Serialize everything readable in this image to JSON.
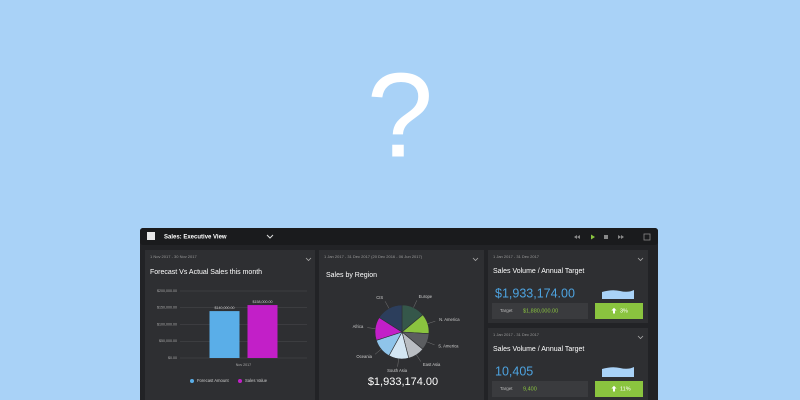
{
  "hero": {
    "symbol": "?"
  },
  "header": {
    "title": "Sales:  Executive View"
  },
  "chart_data": [
    {
      "type": "bar",
      "subtitle": "1 Nov 2017 - 30 Nov 2017",
      "title": "Forecast Vs Actual Sales this month",
      "categories": [
        "Nov 2017"
      ],
      "series": [
        {
          "name": "Forecast Amount",
          "color": "#5aaee8",
          "values": [
            140000
          ],
          "value_labels": [
            "$140,000.00"
          ]
        },
        {
          "name": "Sales Value",
          "color": "#c21fc8",
          "values": [
            158000
          ],
          "value_labels": [
            "$158,000.00"
          ]
        }
      ],
      "ylim": [
        0,
        200000
      ],
      "yticks": [
        {
          "value": 0,
          "label": "$0.00"
        },
        {
          "value": 50000,
          "label": "$50,000.00"
        },
        {
          "value": 100000,
          "label": "$100,000.00"
        },
        {
          "value": 150000,
          "label": "$150,000.00"
        },
        {
          "value": 200000,
          "label": "$200,000.00"
        }
      ],
      "grid": true
    },
    {
      "type": "pie",
      "subtitle": "1 Jan 2017 - 31 Dec 2017  (20 Dec 2016 - 06 Jun 2017)",
      "title": "Sales by Region",
      "categories": [
        "Europe",
        "N. America",
        "S. America",
        "East Asia",
        "South Asia",
        "Oceania",
        "Africa",
        "CIS"
      ],
      "values": [
        14,
        12,
        10,
        10,
        12,
        12,
        14,
        16
      ],
      "colors": [
        "#35574a",
        "#8ac43f",
        "#5b5d60",
        "#b9bdc2",
        "#d4e6f3",
        "#8fc4ea",
        "#c21fc8",
        "#2c3e5c"
      ],
      "summary": "$1,933,174.00"
    }
  ],
  "kpis": [
    {
      "date_range": "1 Jan 2017 - 31 Dec 2017",
      "title": "Sales Volume / Annual Target",
      "value": "$1,933,174.00",
      "target_label": "Target",
      "target_value": "$1,880,000.00",
      "change": "3%"
    },
    {
      "date_range": "1 Jan 2017 - 31 Dec 2017",
      "title": "Sales Volume / Annual Target",
      "value": "10,405",
      "target_label": "Target",
      "target_value": "9,400",
      "change": "11%"
    }
  ]
}
